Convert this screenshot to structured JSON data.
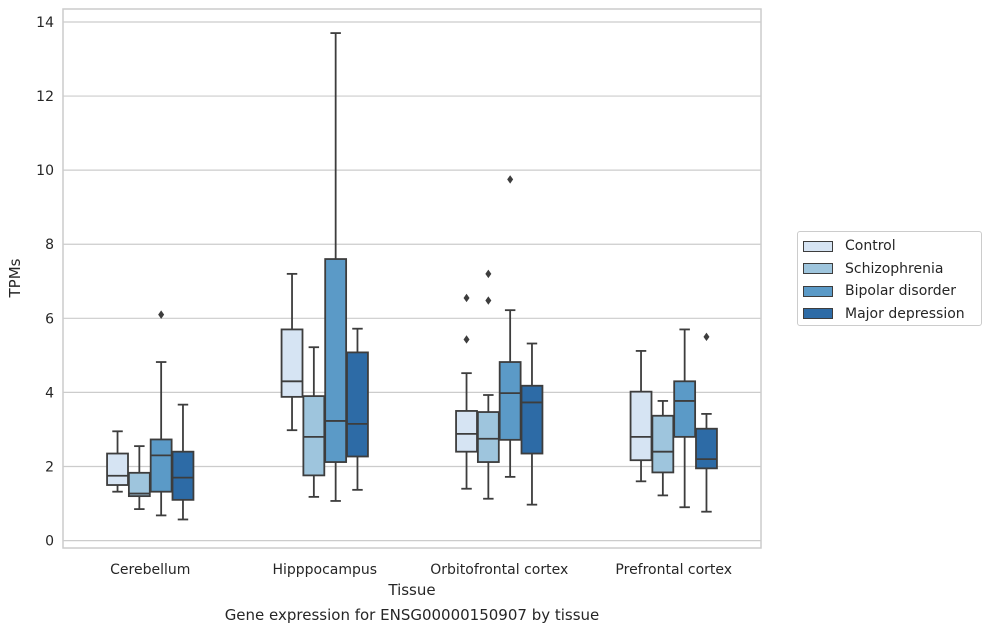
{
  "caption": "Gene expression for ENSG00000150907 by tissue",
  "chart_data": {
    "type": "box",
    "xlabel": "Tissue",
    "ylabel": "TPMs",
    "ylim": [
      -0.2,
      14.35
    ],
    "yticks": [
      0,
      2,
      4,
      6,
      8,
      10,
      12,
      14
    ],
    "grid": "y",
    "legend_position": "right",
    "categories": [
      "Cerebellum",
      "Hipppocampus",
      "Orbitofrontal cortex",
      "Prefrontal cortex"
    ],
    "series": [
      {
        "name": "Control",
        "color": "#d6e4f3",
        "boxes": [
          {
            "whislo": 1.32,
            "q1": 1.5,
            "med": 1.75,
            "q3": 2.35,
            "whishi": 2.95,
            "fliers": []
          },
          {
            "whislo": 2.98,
            "q1": 3.88,
            "med": 4.3,
            "q3": 5.7,
            "whishi": 7.2,
            "fliers": []
          },
          {
            "whislo": 1.4,
            "q1": 2.4,
            "med": 2.88,
            "q3": 3.5,
            "whishi": 4.52,
            "fliers": [
              5.43,
              6.55
            ]
          },
          {
            "whislo": 1.6,
            "q1": 2.17,
            "med": 2.8,
            "q3": 4.02,
            "whishi": 5.12,
            "fliers": []
          }
        ]
      },
      {
        "name": "Schizophrenia",
        "color": "#9ec5dd",
        "boxes": [
          {
            "whislo": 0.85,
            "q1": 1.2,
            "med": 1.27,
            "q3": 1.83,
            "whishi": 2.55,
            "fliers": []
          },
          {
            "whislo": 1.18,
            "q1": 1.76,
            "med": 2.8,
            "q3": 3.9,
            "whishi": 5.22,
            "fliers": []
          },
          {
            "whislo": 1.13,
            "q1": 2.12,
            "med": 2.75,
            "q3": 3.47,
            "whishi": 3.93,
            "fliers": [
              6.48,
              7.2
            ]
          },
          {
            "whislo": 1.22,
            "q1": 1.84,
            "med": 2.4,
            "q3": 3.37,
            "whishi": 3.77,
            "fliers": []
          }
        ]
      },
      {
        "name": "Bipolar disorder",
        "color": "#5b9ac7",
        "boxes": [
          {
            "whislo": 0.68,
            "q1": 1.32,
            "med": 2.3,
            "q3": 2.73,
            "whishi": 4.82,
            "fliers": [
              6.1
            ]
          },
          {
            "whislo": 1.07,
            "q1": 2.12,
            "med": 3.23,
            "q3": 7.6,
            "whishi": 13.7,
            "fliers": []
          },
          {
            "whislo": 1.72,
            "q1": 2.72,
            "med": 3.98,
            "q3": 4.82,
            "whishi": 6.22,
            "fliers": [
              9.75
            ]
          },
          {
            "whislo": 0.9,
            "q1": 2.8,
            "med": 3.77,
            "q3": 4.3,
            "whishi": 5.7,
            "fliers": []
          }
        ]
      },
      {
        "name": "Major depression",
        "color": "#2d6ba6",
        "boxes": [
          {
            "whislo": 0.57,
            "q1": 1.1,
            "med": 1.7,
            "q3": 2.4,
            "whishi": 3.67,
            "fliers": []
          },
          {
            "whislo": 1.37,
            "q1": 2.27,
            "med": 3.15,
            "q3": 5.08,
            "whishi": 5.72,
            "fliers": []
          },
          {
            "whislo": 0.97,
            "q1": 2.35,
            "med": 3.73,
            "q3": 4.18,
            "whishi": 5.32,
            "fliers": []
          },
          {
            "whislo": 0.78,
            "q1": 1.95,
            "med": 2.2,
            "q3": 3.02,
            "whishi": 3.42,
            "fliers": [
              5.5
            ]
          }
        ]
      }
    ]
  }
}
